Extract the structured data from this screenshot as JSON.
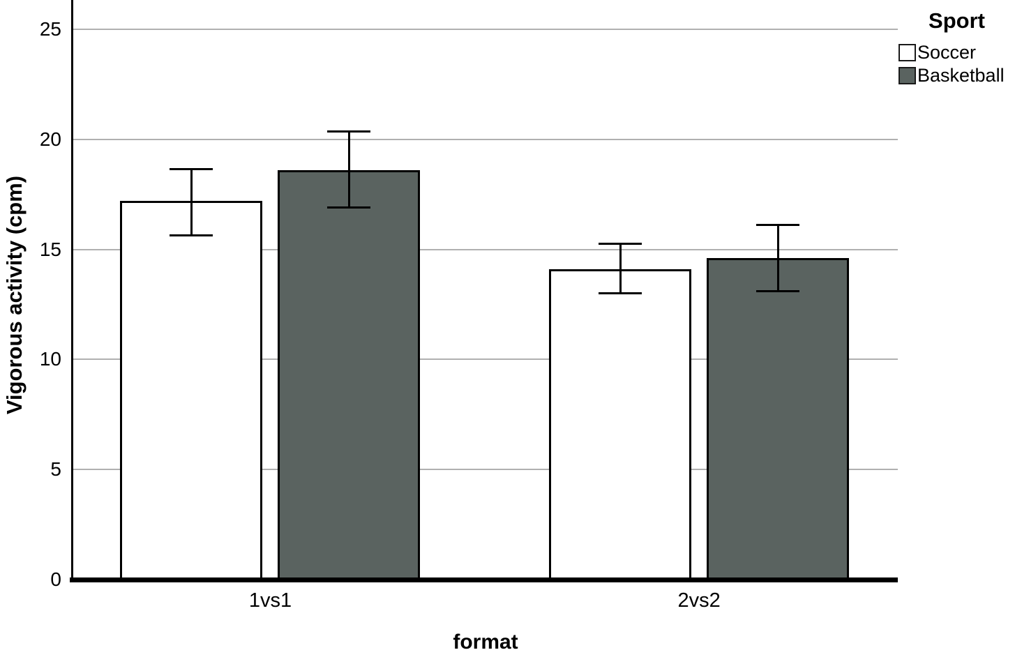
{
  "chart_data": {
    "type": "bar",
    "title": "",
    "xlabel": "format",
    "ylabel": "Vigorous activity (cpm)",
    "categories": [
      "1vs1",
      "2vs2"
    ],
    "series": [
      {
        "name": "Soccer",
        "color": "#ffffff",
        "values": [
          17.2,
          14.1
        ],
        "ci_upper": [
          18.65,
          15.25
        ],
        "ci_lower": [
          15.65,
          13.0
        ]
      },
      {
        "name": "Basketball",
        "color": "#5a6360",
        "values": [
          18.6,
          14.6
        ],
        "ci_upper": [
          20.35,
          16.1
        ],
        "ci_lower": [
          16.9,
          13.1
        ]
      }
    ],
    "ylim": [
      0,
      26.33
    ],
    "yticks": [
      0,
      5,
      10,
      15,
      20,
      25
    ],
    "legend_title": "Sport",
    "legend_position": "top-right",
    "grid": "horizontal",
    "gridline_color": "#b0b0b0",
    "axis_color": "#000000",
    "error_bars": "95% CI"
  }
}
